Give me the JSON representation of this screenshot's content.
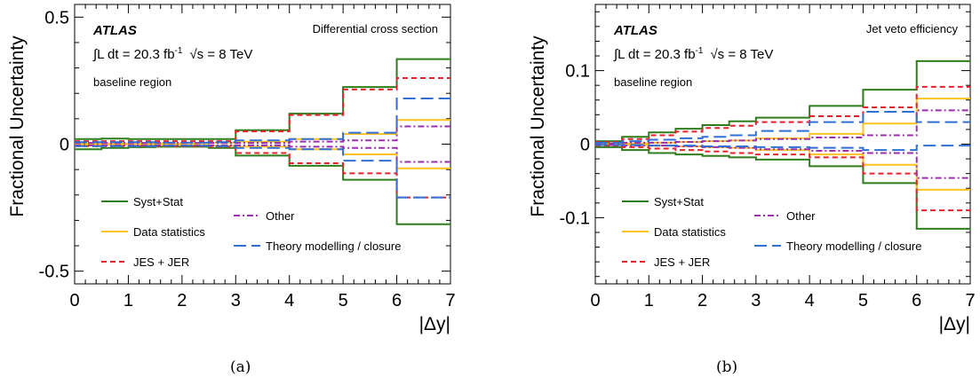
{
  "chart_data": [
    {
      "type": "line",
      "panel_label": "(a)",
      "title": "",
      "annotation": "Differential cross section",
      "experiment": "ATLAS",
      "lumi_prefix": "∫L dt = 20.3 fb",
      "lumi_exp": "-1",
      "sqrt_s_text": "√s = 8 TeV",
      "region": "baseline region",
      "xlabel": "|Δy|",
      "ylabel": "Fractional Uncertainty",
      "xlim": [
        0,
        7
      ],
      "ylim": [
        -0.55,
        0.55
      ],
      "xticks": [
        0,
        1,
        2,
        3,
        4,
        5,
        6,
        7
      ],
      "yticks": [
        -0.5,
        0,
        0.5
      ],
      "ytick_labels": [
        "-0.5",
        "0",
        "0.5"
      ],
      "bin_edges": [
        0,
        0.5,
        1,
        1.5,
        2,
        2.5,
        3,
        4,
        5,
        6,
        7
      ],
      "grid": false,
      "series": [
        {
          "name": "Syst+Stat",
          "color": "#2e7d1c",
          "dash": "solid",
          "up": [
            0.02,
            0.022,
            0.02,
            0.02,
            0.02,
            0.02,
            0.055,
            0.12,
            0.225,
            0.335
          ],
          "down": [
            -0.02,
            -0.015,
            -0.012,
            -0.01,
            -0.01,
            -0.015,
            -0.045,
            -0.085,
            -0.14,
            -0.315
          ]
        },
        {
          "name": "Data statistics",
          "color": "#ffc31f",
          "dash": "solid",
          "up": [
            0.002,
            0.002,
            0.003,
            0.003,
            0.004,
            0.006,
            0.01,
            0.02,
            0.04,
            0.095
          ],
          "down": [
            -0.002,
            -0.002,
            -0.003,
            -0.003,
            -0.004,
            -0.006,
            -0.01,
            -0.02,
            -0.04,
            -0.095
          ]
        },
        {
          "name": "JES + JER",
          "color": "#e8222a",
          "dash": "dash",
          "up": [
            0.012,
            0.012,
            0.012,
            0.012,
            0.012,
            0.012,
            0.05,
            0.115,
            0.215,
            0.26
          ],
          "down": [
            -0.008,
            -0.008,
            -0.008,
            -0.008,
            -0.008,
            -0.01,
            -0.035,
            -0.075,
            -0.115,
            -0.21
          ]
        },
        {
          "name": "Other",
          "color": "#9b2fae",
          "dash": "dashdot",
          "up": [
            0.005,
            0.005,
            0.005,
            0.005,
            0.005,
            0.005,
            0.005,
            0.01,
            0.015,
            0.07
          ],
          "down": [
            -0.005,
            -0.005,
            -0.005,
            -0.005,
            -0.005,
            -0.005,
            -0.005,
            -0.01,
            -0.015,
            -0.07
          ]
        },
        {
          "name": "Theory modelling / closure",
          "color": "#2f6fd6",
          "dash": "longdash",
          "up": [
            0.008,
            0.008,
            0.008,
            0.006,
            0.006,
            0.008,
            0.015,
            0.02,
            0.045,
            0.18
          ],
          "down": [
            -0.008,
            -0.008,
            -0.008,
            -0.006,
            -0.006,
            -0.008,
            -0.015,
            -0.02,
            -0.065,
            -0.21
          ]
        }
      ],
      "legend": [
        {
          "label": "Syst+Stat",
          "series": 0,
          "col": 0,
          "row": 0
        },
        {
          "label": "Data statistics",
          "series": 1,
          "col": 0,
          "row": 1
        },
        {
          "label": "JES + JER",
          "series": 2,
          "col": 0,
          "row": 2
        },
        {
          "label": "Other",
          "series": 3,
          "col": 1,
          "row": 0
        },
        {
          "label": "Theory modelling / closure",
          "series": 4,
          "col": 1,
          "row": 1
        }
      ]
    },
    {
      "type": "line",
      "panel_label": "(b)",
      "title": "",
      "annotation": "Jet veto efficiency",
      "experiment": "ATLAS",
      "lumi_prefix": "∫L dt = 20.3 fb",
      "lumi_exp": "-1",
      "sqrt_s_text": "√s = 8 TeV",
      "region": "baseline region",
      "xlabel": "|Δy|",
      "ylabel": "Fractional Uncertainty",
      "xlim": [
        0,
        7
      ],
      "ylim": [
        -0.19,
        0.19
      ],
      "xticks": [
        0,
        1,
        2,
        3,
        4,
        5,
        6,
        7
      ],
      "yticks": [
        -0.1,
        0,
        0.1
      ],
      "ytick_labels": [
        "-0.1",
        "0",
        "0.1"
      ],
      "bin_edges": [
        0,
        0.5,
        1,
        1.5,
        2,
        2.5,
        3,
        4,
        5,
        6,
        7
      ],
      "grid": false,
      "series": [
        {
          "name": "Syst+Stat",
          "color": "#2e7d1c",
          "dash": "solid",
          "up": [
            0.004,
            0.01,
            0.016,
            0.021,
            0.026,
            0.031,
            0.036,
            0.052,
            0.074,
            0.113
          ],
          "down": [
            -0.004,
            -0.008,
            -0.012,
            -0.014,
            -0.016,
            -0.018,
            -0.021,
            -0.03,
            -0.053,
            -0.115
          ]
        },
        {
          "name": "Data statistics",
          "color": "#ffc31f",
          "dash": "solid",
          "up": [
            0.001,
            0.001,
            0.002,
            0.003,
            0.004,
            0.005,
            0.008,
            0.014,
            0.028,
            0.062
          ],
          "down": [
            -0.001,
            -0.001,
            -0.002,
            -0.003,
            -0.004,
            -0.005,
            -0.008,
            -0.014,
            -0.028,
            -0.062
          ]
        },
        {
          "name": "JES + JER",
          "color": "#e8222a",
          "dash": "dash",
          "up": [
            0.003,
            0.007,
            0.012,
            0.017,
            0.022,
            0.025,
            0.03,
            0.038,
            0.05,
            0.078
          ],
          "down": [
            -0.002,
            -0.004,
            -0.006,
            -0.008,
            -0.01,
            -0.012,
            -0.014,
            -0.018,
            -0.04,
            -0.09
          ]
        },
        {
          "name": "Other",
          "color": "#9b2fae",
          "dash": "dashdot",
          "up": [
            0.001,
            0.002,
            0.002,
            0.003,
            0.004,
            0.005,
            0.007,
            0.009,
            0.012,
            0.046
          ],
          "down": [
            -0.001,
            -0.002,
            -0.002,
            -0.003,
            -0.004,
            -0.005,
            -0.007,
            -0.009,
            -0.012,
            -0.046
          ]
        },
        {
          "name": "Theory modelling / closure",
          "color": "#2f6fd6",
          "dash": "longdash",
          "up": [
            0.002,
            0.004,
            0.006,
            0.008,
            0.01,
            0.012,
            0.018,
            0.03,
            0.044,
            0.03
          ],
          "down": [
            -0.001,
            -0.001,
            -0.002,
            -0.002,
            -0.003,
            -0.003,
            -0.004,
            -0.005,
            -0.008,
            -0.002
          ]
        }
      ],
      "legend": [
        {
          "label": "Syst+Stat",
          "series": 0,
          "col": 0,
          "row": 0
        },
        {
          "label": "Data statistics",
          "series": 1,
          "col": 0,
          "row": 1
        },
        {
          "label": "JES + JER",
          "series": 2,
          "col": 0,
          "row": 2
        },
        {
          "label": "Other",
          "series": 3,
          "col": 1,
          "row": 0
        },
        {
          "label": "Theory modelling / closure",
          "series": 4,
          "col": 1,
          "row": 1
        }
      ]
    }
  ]
}
